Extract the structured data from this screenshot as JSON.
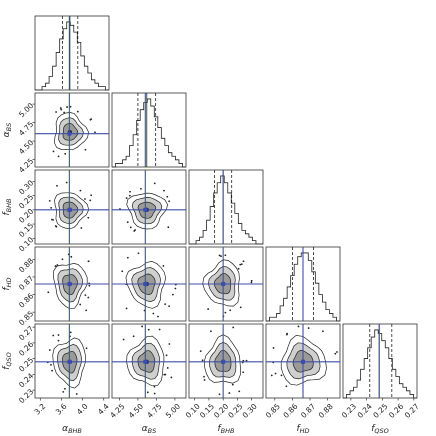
{
  "chart_data": {
    "type": "corner",
    "parameters": [
      {
        "id": "abhb",
        "sym": "α",
        "sub": "BHB",
        "range": [
          3.1,
          4.5
        ],
        "truth": 3.75,
        "q": [
          3.62,
          3.76,
          3.91
        ],
        "ticks": [
          "3.2",
          "3.6",
          "4.0",
          "4.4"
        ],
        "tickvals": [
          3.2,
          3.6,
          4.0,
          4.4
        ]
      },
      {
        "id": "abs",
        "sym": "α",
        "sub": "BS",
        "range": [
          4.15,
          5.15
        ],
        "truth": 4.6,
        "q": [
          4.5,
          4.62,
          4.74
        ],
        "ticks": [
          "4.25",
          "4.50",
          "4.75",
          "5.00"
        ],
        "tickvals": [
          4.25,
          4.5,
          4.75,
          5.0
        ]
      },
      {
        "id": "fbhb",
        "sym": "f",
        "sub": "BHB",
        "range": [
          0.08,
          0.34
        ],
        "truth": 0.2,
        "q": [
          0.17,
          0.2,
          0.23
        ],
        "ticks": [
          "0.10",
          "0.15",
          "0.20",
          "0.25",
          "0.30"
        ],
        "tickvals": [
          0.1,
          0.15,
          0.2,
          0.25,
          0.3
        ]
      },
      {
        "id": "fhd",
        "sym": "f",
        "sub": "HD",
        "range": [
          0.845,
          0.887
        ],
        "truth": 0.866,
        "q": [
          0.86,
          0.866,
          0.872
        ],
        "ticks": [
          "0.85",
          "0.86",
          "0.87",
          "0.88"
        ],
        "tickvals": [
          0.85,
          0.86,
          0.87,
          0.88
        ]
      },
      {
        "id": "fqso",
        "sym": "f",
        "sub": "QSO",
        "range": [
          0.225,
          0.272
        ],
        "truth": 0.248,
        "q": [
          0.242,
          0.248,
          0.256
        ],
        "ticks": [
          "0.23",
          "0.24",
          "0.25",
          "0.26",
          "0.27"
        ],
        "tickvals": [
          0.23,
          0.24,
          0.25,
          0.26,
          0.27
        ]
      }
    ],
    "histograms": [
      [
        0,
        0,
        1,
        2,
        4,
        7,
        11,
        15,
        18,
        20,
        19,
        17,
        14,
        10,
        7,
        5,
        3,
        2,
        1,
        1,
        0
      ],
      [
        0,
        1,
        1,
        2,
        3,
        6,
        9,
        13,
        16,
        18,
        19,
        17,
        14,
        11,
        8,
        6,
        4,
        3,
        2,
        1,
        0
      ],
      [
        0,
        0,
        1,
        2,
        4,
        7,
        11,
        15,
        18,
        20,
        18,
        15,
        12,
        9,
        6,
        4,
        3,
        2,
        1,
        0,
        0
      ],
      [
        0,
        1,
        1,
        2,
        4,
        6,
        9,
        12,
        15,
        17,
        18,
        18,
        16,
        13,
        10,
        7,
        5,
        3,
        2,
        1,
        0
      ],
      [
        0,
        1,
        2,
        3,
        5,
        8,
        11,
        14,
        17,
        19,
        18,
        16,
        14,
        11,
        8,
        6,
        4,
        3,
        2,
        1,
        0
      ]
    ],
    "title": "",
    "xlabel": "",
    "ylabel": ""
  },
  "labels": {
    "abhb": {
      "sym": "α",
      "sub": "BHB"
    },
    "abs": {
      "sym": "α",
      "sub": "BS"
    },
    "fbhb": {
      "sym": "f",
      "sub": "BHB"
    },
    "fhd": {
      "sym": "f",
      "sub": "HD"
    },
    "fqso": {
      "sym": "f",
      "sub": "QSO"
    }
  },
  "colors": {
    "truth": "#3c4fa8",
    "outer": "#cfcfcf",
    "inner": "#9a9a9a",
    "ink": "#222222"
  }
}
